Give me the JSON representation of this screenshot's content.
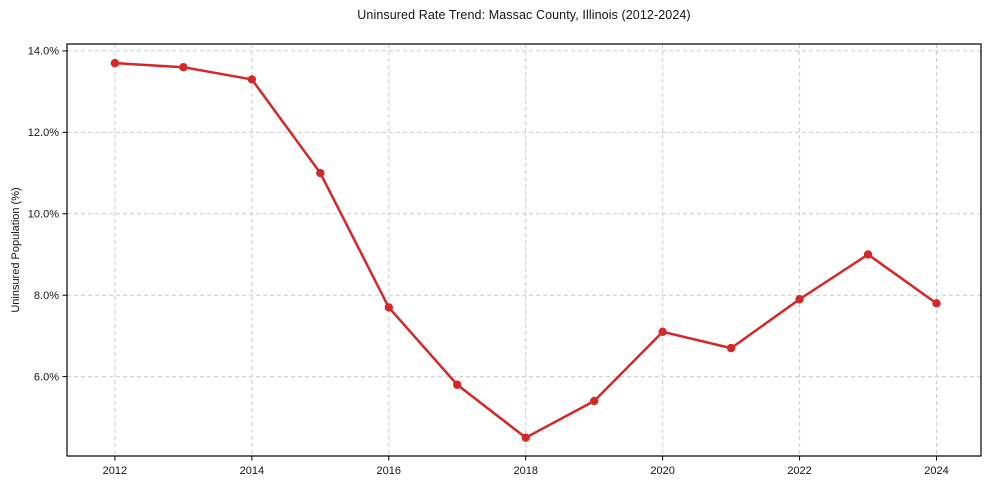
{
  "chart_data": {
    "type": "line",
    "title": "Uninsured Rate Trend: Massac County, Illinois (2012-2024)",
    "xlabel": "",
    "ylabel": "Uninsured Population (%)",
    "x": [
      2012,
      2013,
      2014,
      2015,
      2016,
      2017,
      2018,
      2019,
      2020,
      2021,
      2022,
      2023,
      2024
    ],
    "values": [
      13.7,
      13.6,
      13.3,
      11.0,
      7.7,
      5.8,
      4.5,
      5.4,
      7.1,
      6.7,
      7.9,
      9.0,
      7.8
    ],
    "xlim": [
      2011.3,
      2024.65
    ],
    "ylim": [
      4.05,
      14.17
    ],
    "xticks": [
      2012,
      2014,
      2016,
      2018,
      2020,
      2022,
      2024
    ],
    "xtick_labels": [
      "2012",
      "2014",
      "2016",
      "2018",
      "2020",
      "2022",
      "2024"
    ],
    "yticks": [
      6,
      8,
      10,
      12,
      14
    ],
    "ytick_labels": [
      "6.0%",
      "8.0%",
      "10.0%",
      "12.0%",
      "14.0%"
    ],
    "grid": true,
    "legend": "none",
    "line_color": "#d62728",
    "marker": "circle",
    "grid_color": "#cccccc",
    "axis_color": "#000000",
    "background_color": "#ffffff"
  }
}
